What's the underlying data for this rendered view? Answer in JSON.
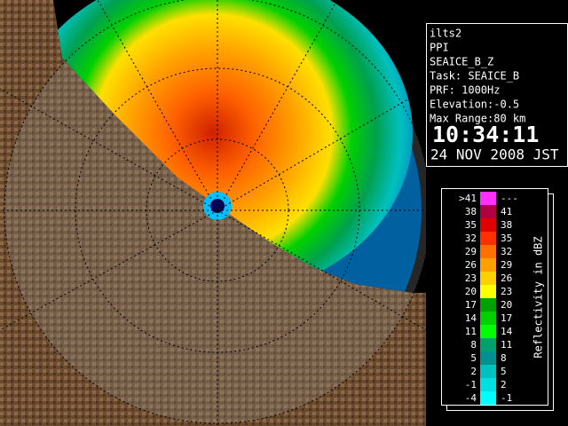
{
  "info": {
    "lines": [
      "ilts2",
      "PPI",
      "SEAICE_B_Z",
      "Task: SEAICE_B",
      "PRF: 1000Hz",
      "Elevation:-0.5",
      "Max Range:80 km"
    ],
    "time": "10:34:11",
    "date": "24 NOV 2008 JST"
  },
  "legend": {
    "title": "Reflectivity in dBZ",
    "rows": [
      {
        "low": ">41",
        "high": "---",
        "color": "#ff30ff"
      },
      {
        "low": "38",
        "high": "41",
        "color": "#b00040"
      },
      {
        "low": "35",
        "high": "38",
        "color": "#e00000"
      },
      {
        "low": "32",
        "high": "35",
        "color": "#ff3000"
      },
      {
        "low": "29",
        "high": "32",
        "color": "#ff7000"
      },
      {
        "low": "26",
        "high": "29",
        "color": "#ffa000"
      },
      {
        "low": "23",
        "high": "26",
        "color": "#ffd000"
      },
      {
        "low": "20",
        "high": "23",
        "color": "#ffff00"
      },
      {
        "low": "17",
        "high": "20",
        "color": "#00a000"
      },
      {
        "low": "14",
        "high": "17",
        "color": "#00d000"
      },
      {
        "low": "11",
        "high": "14",
        "color": "#00ff00"
      },
      {
        "low": "8",
        "high": "11",
        "color": "#00a070"
      },
      {
        "low": "5",
        "high": "8",
        "color": "#009090"
      },
      {
        "low": "2",
        "high": "5",
        "color": "#00c0c0"
      },
      {
        "low": "-1",
        "high": "2",
        "color": "#00e0e0"
      },
      {
        "low": "-4",
        "high": "-1",
        "color": "#00ffff"
      }
    ]
  }
}
